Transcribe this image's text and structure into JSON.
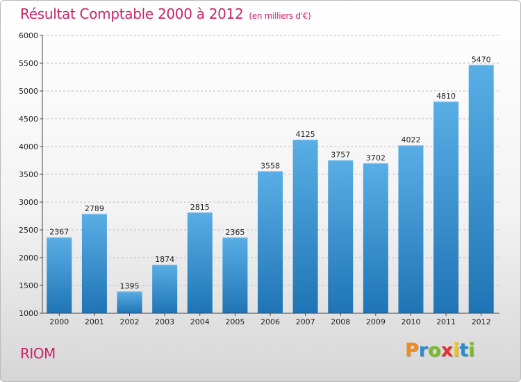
{
  "header": {
    "title": "Résultat Comptable 2000 à 2012",
    "subtitle": "(en milliers d'€)"
  },
  "footer": {
    "commune": "RIOM",
    "logo_letters": [
      "P",
      "r",
      "o",
      "x",
      "i",
      "t",
      "i"
    ],
    "logo_colors": [
      "#f28a1c",
      "#2a8ccf",
      "#7ab929",
      "#e5322e",
      "#f5c400",
      "#2a8ccf",
      "#7ab929"
    ]
  },
  "colors": {
    "bar_light": "#5aaee6",
    "bar_dark": "#1f74b5",
    "grid": "#bdbdbd",
    "axis": "#444444"
  },
  "chart_data": {
    "type": "bar",
    "title": "Résultat Comptable 2000 à 2012",
    "subtitle": "(en milliers d'€)",
    "xlabel": "",
    "ylabel": "",
    "categories": [
      "2000",
      "2001",
      "2002",
      "2003",
      "2004",
      "2005",
      "2006",
      "2007",
      "2008",
      "2009",
      "2010",
      "2011",
      "2012"
    ],
    "values": [
      2367,
      2789,
      1395,
      1874,
      2815,
      2365,
      3558,
      4125,
      3757,
      3702,
      4022,
      4810,
      5470
    ],
    "ylim": [
      1000,
      6000
    ],
    "yticks": [
      1000,
      1500,
      2000,
      2500,
      3000,
      3500,
      4000,
      4500,
      5000,
      5500,
      6000
    ],
    "grid": true,
    "grid_style": "dashed horizontal"
  }
}
